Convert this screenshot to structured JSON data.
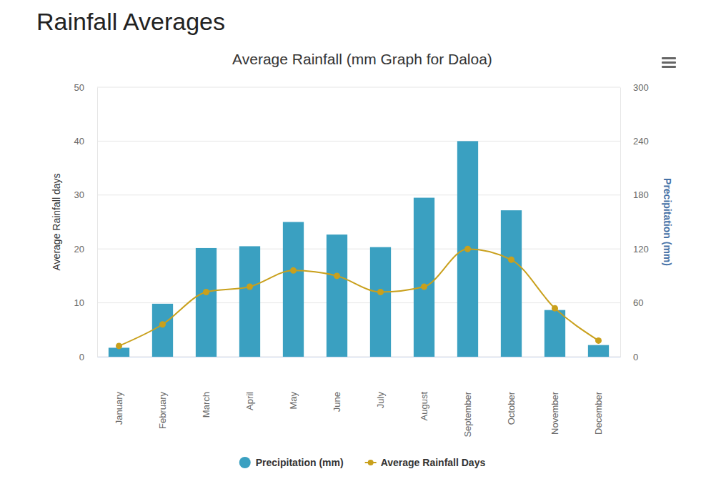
{
  "heading": "Rainfall Averages",
  "chart_data": {
    "type": "bar",
    "title": "Average Rainfall (mm Graph for Daloa)",
    "y_label": "Average Rainfall days",
    "y2_label": "Precipitation (mm)",
    "categories": [
      "January",
      "February",
      "March",
      "April",
      "May",
      "June",
      "July",
      "August",
      "September",
      "October",
      "November",
      "December"
    ],
    "series": [
      {
        "name": "Precipitation (mm)",
        "type": "bar",
        "axis": "y2",
        "color": "#3aa0c1",
        "values": [
          10,
          59,
          121,
          123,
          150,
          136,
          122,
          177,
          240,
          163,
          52,
          13
        ]
      },
      {
        "name": "Average Rainfall Days",
        "type": "line",
        "color": "#c9a01c",
        "marker": "circle",
        "line_style": "solid",
        "values": [
          2,
          6,
          12,
          13,
          16,
          15,
          12,
          13,
          20,
          18,
          9,
          3
        ]
      }
    ],
    "ylim": [
      0,
      50
    ],
    "yticks": [
      0,
      10,
      20,
      30,
      40,
      50
    ],
    "y2lim": [
      0,
      300
    ],
    "y2ticks": [
      0,
      60,
      120,
      180,
      240,
      300
    ],
    "grid": true,
    "legend": "bottom"
  }
}
